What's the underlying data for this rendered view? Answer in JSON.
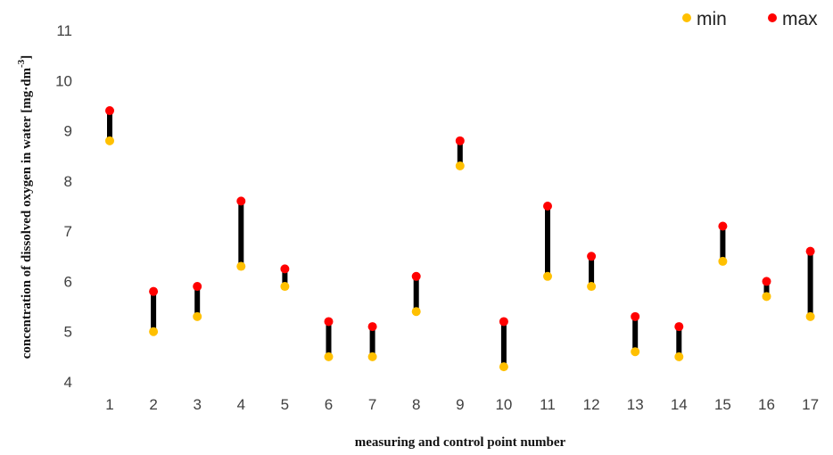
{
  "chart_data": {
    "type": "scatter",
    "subtype": "min-max range (high-low) plot",
    "title": "",
    "xlabel": "measuring and control point number",
    "ylabel_parts": {
      "main": "concentration of dissolved oxygen in water [mg·dm",
      "superscript": "-3",
      "close": "]"
    },
    "categories": [
      "1",
      "2",
      "3",
      "4",
      "5",
      "6",
      "7",
      "8",
      "9",
      "10",
      "11",
      "12",
      "13",
      "14",
      "15",
      "16",
      "17"
    ],
    "ylim": [
      4,
      11
    ],
    "yticks": [
      "4",
      "5",
      "6",
      "7",
      "8",
      "9",
      "10",
      "11"
    ],
    "grid": false,
    "legend_position": "top-right",
    "series": [
      {
        "name": "min",
        "color": "#FFC000",
        "values": [
          8.8,
          5.0,
          5.3,
          6.3,
          5.9,
          4.5,
          4.5,
          5.4,
          8.3,
          4.3,
          6.1,
          5.9,
          4.6,
          4.5,
          6.4,
          5.7,
          5.3
        ]
      },
      {
        "name": "max",
        "color": "#FF0000",
        "values": [
          9.4,
          5.8,
          5.9,
          7.6,
          6.25,
          5.2,
          5.1,
          6.1,
          8.8,
          5.2,
          7.5,
          6.5,
          5.3,
          5.1,
          7.1,
          6.0,
          6.6
        ]
      }
    ],
    "range_bar_color": "#000000"
  }
}
